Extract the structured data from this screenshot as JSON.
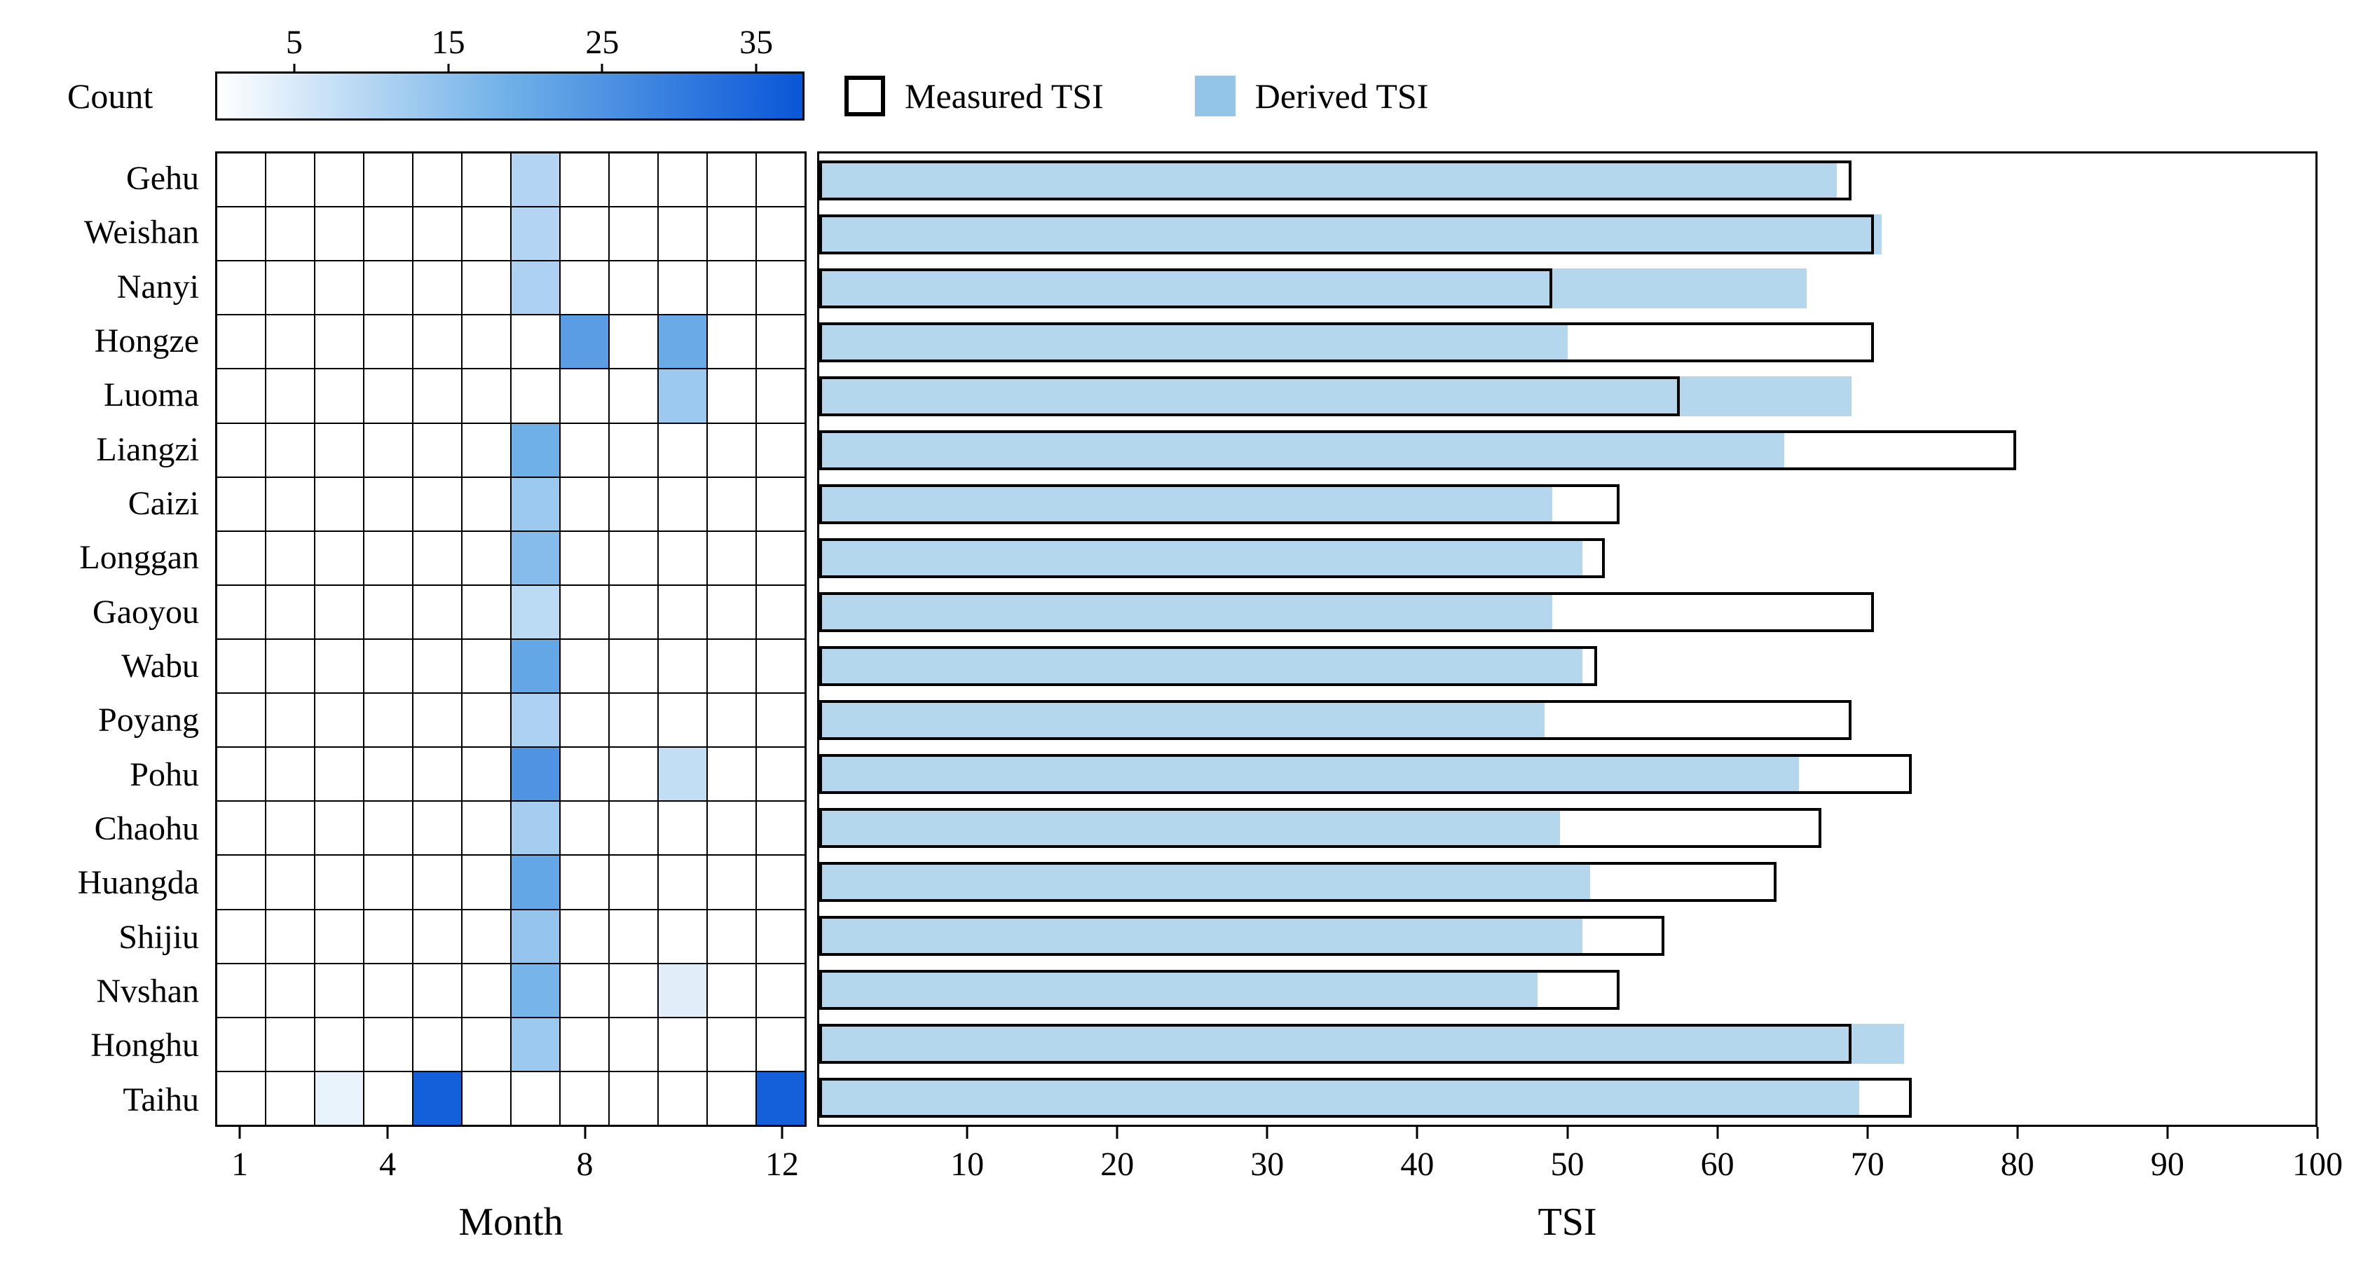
{
  "figure": {
    "colorbar": {
      "label": "Count",
      "ticks": [
        5,
        15,
        25,
        35
      ],
      "scale_min": 0,
      "scale_max": 38
    },
    "legend": [
      {
        "label": "Measured TSI"
      },
      {
        "label": "Derived TSI"
      }
    ],
    "colors": {
      "measured_fill": "#ffffff",
      "measured_edge": "#000000",
      "derived_fill": "#b5d7ed",
      "legend_derived_fill": "#92c5e8",
      "grid_line": "#000000",
      "colormap_stops": [
        [
          0,
          "#ffffff"
        ],
        [
          0.5,
          "#6fb0e8"
        ],
        [
          1,
          "#0956d8"
        ]
      ]
    }
  },
  "chart_data": [
    {
      "type": "heatmap",
      "title": "",
      "xlabel": "Month",
      "x_ticks": [
        1,
        4,
        8,
        12
      ],
      "x_range": [
        1,
        12
      ],
      "value_label": "Count",
      "value_range": [
        0,
        38
      ],
      "grid": true,
      "categories": [
        "Gehu",
        "Weishan",
        "Nanyi",
        "Hongze",
        "Luoma",
        "Liangzi",
        "Caizi",
        "Longgan",
        "Gaoyou",
        "Wabu",
        "Poyang",
        "Pohu",
        "Chaohu",
        "Huangda",
        "Shijiu",
        "Nvshan",
        "Honghu",
        "Taihu"
      ],
      "cells": [
        {
          "lake": "Gehu",
          "month": 7,
          "count": 10
        },
        {
          "lake": "Weishan",
          "month": 7,
          "count": 10
        },
        {
          "lake": "Nanyi",
          "month": 7,
          "count": 11
        },
        {
          "lake": "Hongze",
          "month": 8,
          "count": 23
        },
        {
          "lake": "Hongze",
          "month": 10,
          "count": 20
        },
        {
          "lake": "Luoma",
          "month": 10,
          "count": 13
        },
        {
          "lake": "Liangzi",
          "month": 7,
          "count": 19
        },
        {
          "lake": "Caizi",
          "month": 7,
          "count": 13
        },
        {
          "lake": "Longgan",
          "month": 7,
          "count": 16
        },
        {
          "lake": "Gaoyou",
          "month": 7,
          "count": 9
        },
        {
          "lake": "Wabu",
          "month": 7,
          "count": 21
        },
        {
          "lake": "Poyang",
          "month": 7,
          "count": 11
        },
        {
          "lake": "Pohu",
          "month": 7,
          "count": 25
        },
        {
          "lake": "Pohu",
          "month": 10,
          "count": 8
        },
        {
          "lake": "Chaohu",
          "month": 7,
          "count": 12
        },
        {
          "lake": "Huangda",
          "month": 7,
          "count": 21
        },
        {
          "lake": "Shijiu",
          "month": 7,
          "count": 14
        },
        {
          "lake": "Nvshan",
          "month": 7,
          "count": 18
        },
        {
          "lake": "Nvshan",
          "month": 10,
          "count": 4
        },
        {
          "lake": "Honghu",
          "month": 7,
          "count": 13
        },
        {
          "lake": "Taihu",
          "month": 3,
          "count": 3
        },
        {
          "lake": "Taihu",
          "month": 5,
          "count": 36
        },
        {
          "lake": "Taihu",
          "month": 12,
          "count": 36
        }
      ]
    },
    {
      "type": "bar",
      "orientation": "horizontal",
      "title": "",
      "xlabel": "TSI",
      "xlim": [
        0,
        100
      ],
      "x_ticks": [
        10,
        20,
        30,
        40,
        50,
        60,
        70,
        80,
        90,
        100
      ],
      "legend_position": "top",
      "categories": [
        "Gehu",
        "Weishan",
        "Nanyi",
        "Hongze",
        "Luoma",
        "Liangzi",
        "Caizi",
        "Longgan",
        "Gaoyou",
        "Wabu",
        "Poyang",
        "Pohu",
        "Chaohu",
        "Huangda",
        "Shijiu",
        "Nvshan",
        "Honghu",
        "Taihu"
      ],
      "series": [
        {
          "name": "Measured TSI",
          "values": [
            69,
            70.5,
            49,
            70.5,
            57.5,
            80,
            53.5,
            52.5,
            70.5,
            52,
            69,
            73,
            67,
            64,
            56.5,
            53.5,
            69,
            73
          ]
        },
        {
          "name": "Derived TSI",
          "values": [
            68,
            71,
            66,
            50,
            69,
            64.5,
            49,
            51,
            49,
            51,
            48.5,
            65.5,
            49.5,
            51.5,
            51,
            48,
            72.5,
            69.5
          ]
        }
      ]
    }
  ]
}
